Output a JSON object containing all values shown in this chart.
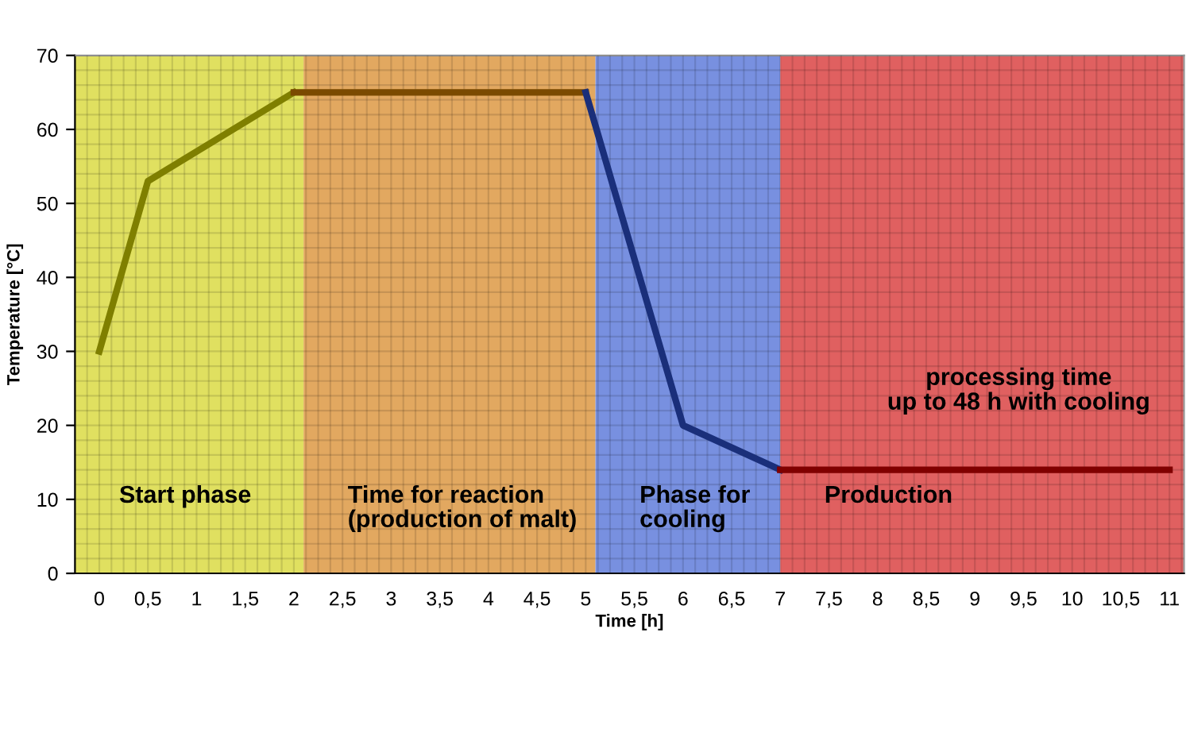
{
  "chart_data": {
    "type": "line",
    "xlabel": "Time [h]",
    "ylabel": "Temperature [°C]",
    "series": [
      {
        "color": "#7f7f00",
        "x": [
          0,
          0.5,
          2
        ],
        "values": [
          30,
          53,
          65
        ]
      },
      {
        "color": "#7a4a00",
        "x": [
          2,
          5
        ],
        "values": [
          65,
          65
        ]
      },
      {
        "color": "#1a2f7a",
        "x": [
          5,
          6,
          7
        ],
        "values": [
          65,
          20,
          14
        ]
      },
      {
        "color": "#800000",
        "x": [
          7,
          11
        ],
        "values": [
          14,
          14
        ]
      }
    ],
    "bands": [
      {
        "axis": "x",
        "from": -0.25,
        "to": 2.1,
        "label": "Start phase",
        "color": "#e0e060"
      },
      {
        "axis": "x",
        "from": 2.1,
        "to": 5.1,
        "label": "Time for reaction\n(production of malt)",
        "color": "#e2a860"
      },
      {
        "axis": "x",
        "from": 5.1,
        "to": 7.0,
        "label": "Phase for\ncooling",
        "color": "#7890e0"
      },
      {
        "axis": "x",
        "from": 7.0,
        "to": 11.15,
        "label": "Production",
        "color": "#e06060"
      }
    ],
    "annotations": [
      {
        "text": "processing time\nup to 48 h with cooling",
        "x": 9.45,
        "y": 14
      }
    ],
    "xlim": [
      -0.25,
      11.15
    ],
    "xticks": [
      0,
      {
        "value": 0.5,
        "label": "0,5"
      },
      1,
      {
        "value": 1.5,
        "label": "1,5"
      },
      2,
      {
        "value": 2.5,
        "label": "2,5"
      },
      3,
      {
        "value": 3.5,
        "label": "3,5"
      },
      4,
      {
        "value": 4.5,
        "label": "4,5"
      },
      5,
      {
        "value": 5.5,
        "label": "5,5"
      },
      6,
      {
        "value": 6.5,
        "label": "6,5"
      },
      7,
      {
        "value": 7.5,
        "label": "7,5"
      },
      8,
      {
        "value": 8.5,
        "label": "8,5"
      },
      9,
      {
        "value": 9.5,
        "label": "9,5"
      },
      10,
      {
        "value": 10.5,
        "label": "10,5"
      },
      11
    ],
    "ylim": [
      0,
      70
    ],
    "yticks": [
      0,
      10,
      20,
      30,
      40,
      50,
      60,
      70
    ],
    "grid": true,
    "marker": "none",
    "line_style": "solid"
  }
}
